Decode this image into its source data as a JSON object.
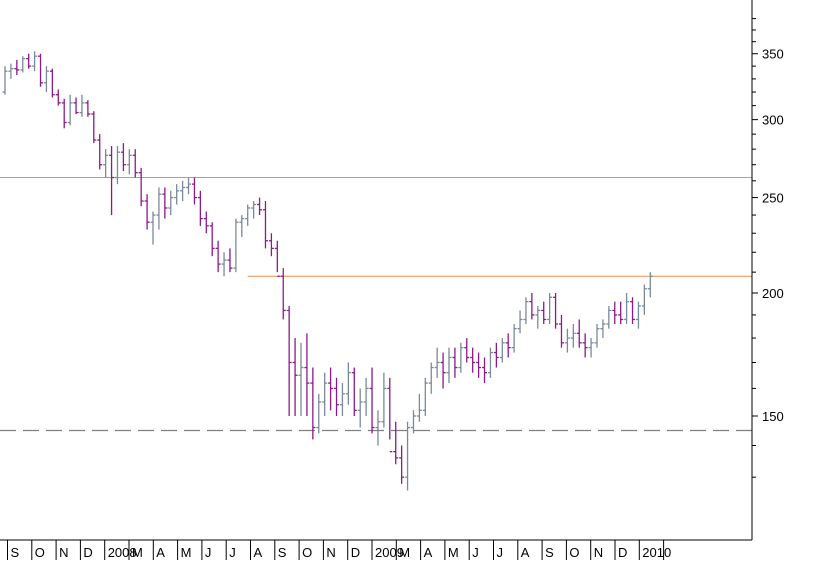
{
  "chart_data": {
    "type": "bar",
    "subtype": "ohlc",
    "title": "",
    "xlabel": "",
    "ylabel": "",
    "y_scale": "log",
    "ylim": [
      120,
      385
    ],
    "y_ticks": [
      150,
      200,
      250,
      300,
      350
    ],
    "grid": false,
    "x_month_labels": [
      "S",
      "O",
      "N",
      "D",
      "2008",
      "M",
      "A",
      "M",
      "J",
      "J",
      "A",
      "S",
      "O",
      "N",
      "D",
      "2009",
      "M",
      "A",
      "M",
      "J",
      "J",
      "A",
      "S",
      "O",
      "N",
      "D",
      "2010"
    ],
    "colors": {
      "up": "#7a8a9a",
      "down": "#8b1a8b",
      "resistance": "#e8914a",
      "support": "#808080",
      "axis": "#000000"
    },
    "reference_lines": [
      {
        "style": "solid",
        "value": 262,
        "from_week": 0,
        "to_week": 125
      },
      {
        "style": "solid",
        "value": 208,
        "from_week": 41,
        "to_week": 125
      },
      {
        "style": "dashed",
        "value": 145,
        "from_week": 0,
        "to_week": 125
      }
    ],
    "series": [
      {
        "values": [
          [
            320,
            340,
            318,
            336
          ],
          [
            336,
            342,
            330,
            338
          ],
          [
            338,
            345,
            333,
            337
          ],
          [
            337,
            348,
            335,
            346
          ],
          [
            346,
            350,
            338,
            340
          ],
          [
            340,
            352,
            336,
            348
          ],
          [
            348,
            350,
            324,
            327
          ],
          [
            327,
            340,
            320,
            336
          ],
          [
            336,
            338,
            316,
            318
          ],
          [
            318,
            322,
            310,
            312
          ],
          [
            312,
            315,
            294,
            298
          ],
          [
            298,
            318,
            296,
            312
          ],
          [
            312,
            316,
            304,
            305
          ],
          [
            305,
            318,
            302,
            312
          ],
          [
            312,
            314,
            302,
            304
          ],
          [
            304,
            306,
            284,
            286
          ],
          [
            286,
            290,
            267,
            270
          ],
          [
            270,
            280,
            262,
            276
          ],
          [
            276,
            282,
            240,
            262
          ],
          [
            262,
            282,
            258,
            278
          ],
          [
            278,
            284,
            266,
            270
          ],
          [
            270,
            280,
            264,
            276
          ],
          [
            276,
            280,
            262,
            265
          ],
          [
            265,
            268,
            245,
            248
          ],
          [
            248,
            252,
            232,
            236
          ],
          [
            236,
            242,
            224,
            240
          ],
          [
            240,
            256,
            232,
            252
          ],
          [
            252,
            256,
            238,
            244
          ],
          [
            244,
            254,
            240,
            250
          ],
          [
            250,
            258,
            246,
            254
          ],
          [
            254,
            260,
            248,
            256
          ],
          [
            256,
            262,
            252,
            258
          ],
          [
            258,
            262,
            246,
            250
          ],
          [
            250,
            254,
            234,
            238
          ],
          [
            238,
            242,
            230,
            234
          ],
          [
            234,
            236,
            218,
            222
          ],
          [
            222,
            226,
            210,
            214
          ],
          [
            214,
            220,
            208,
            216
          ],
          [
            216,
            222,
            210,
            212
          ],
          [
            212,
            238,
            210,
            236
          ],
          [
            236,
            240,
            228,
            238
          ],
          [
            238,
            246,
            234,
            244
          ],
          [
            244,
            248,
            238,
            246
          ],
          [
            246,
            250,
            240,
            243
          ],
          [
            243,
            248,
            222,
            226
          ],
          [
            226,
            230,
            218,
            222
          ],
          [
            222,
            226,
            210,
            208
          ],
          [
            208,
            212,
            188,
            192
          ],
          [
            192,
            194,
            150,
            170
          ],
          [
            170,
            180,
            150,
            165
          ],
          [
            165,
            178,
            150,
            168
          ],
          [
            168,
            182,
            150,
            162
          ],
          [
            162,
            168,
            142,
            146
          ],
          [
            146,
            158,
            144,
            155
          ],
          [
            155,
            166,
            150,
            162
          ],
          [
            162,
            168,
            152,
            160
          ],
          [
            160,
            164,
            150,
            154
          ],
          [
            154,
            162,
            150,
            158
          ],
          [
            158,
            170,
            154,
            166
          ],
          [
            166,
            168,
            150,
            152
          ],
          [
            152,
            160,
            146,
            155
          ],
          [
            155,
            164,
            150,
            160
          ],
          [
            160,
            168,
            144,
            146
          ],
          [
            146,
            152,
            140,
            148
          ],
          [
            148,
            166,
            146,
            160
          ],
          [
            160,
            164,
            142,
            138
          ],
          [
            138,
            148,
            134,
            136
          ],
          [
            136,
            140,
            128,
            130
          ],
          [
            130,
            148,
            126,
            146
          ],
          [
            146,
            152,
            144,
            150
          ],
          [
            150,
            158,
            148,
            152
          ],
          [
            152,
            164,
            150,
            162
          ],
          [
            162,
            170,
            158,
            168
          ],
          [
            168,
            176,
            164,
            170
          ],
          [
            170,
            174,
            160,
            166
          ],
          [
            166,
            176,
            162,
            172
          ],
          [
            172,
            176,
            164,
            168
          ],
          [
            168,
            178,
            166,
            176
          ],
          [
            176,
            180,
            170,
            172
          ],
          [
            172,
            176,
            166,
            170
          ],
          [
            170,
            174,
            164,
            168
          ],
          [
            168,
            172,
            162,
            166
          ],
          [
            166,
            176,
            164,
            174
          ],
          [
            174,
            178,
            168,
            172
          ],
          [
            172,
            180,
            170,
            178
          ],
          [
            178,
            182,
            172,
            176
          ],
          [
            176,
            186,
            174,
            184
          ],
          [
            184,
            192,
            182,
            188
          ],
          [
            188,
            198,
            186,
            196
          ],
          [
            196,
            200,
            188,
            190
          ],
          [
            190,
            194,
            184,
            192
          ],
          [
            192,
            196,
            186,
            188
          ],
          [
            188,
            200,
            186,
            198
          ],
          [
            198,
            200,
            184,
            186
          ],
          [
            186,
            190,
            176,
            178
          ],
          [
            178,
            184,
            174,
            180
          ],
          [
            180,
            186,
            176,
            182
          ],
          [
            182,
            188,
            176,
            178
          ],
          [
            178,
            182,
            172,
            176
          ],
          [
            176,
            180,
            172,
            178
          ],
          [
            178,
            186,
            176,
            184
          ],
          [
            184,
            188,
            180,
            186
          ],
          [
            186,
            194,
            184,
            192
          ],
          [
            192,
            196,
            186,
            190
          ],
          [
            190,
            196,
            186,
            188
          ],
          [
            188,
            200,
            186,
            196
          ],
          [
            196,
            198,
            186,
            188
          ],
          [
            188,
            196,
            184,
            194
          ],
          [
            194,
            204,
            190,
            202
          ],
          [
            202,
            210,
            198,
            208
          ]
        ]
      }
    ]
  }
}
